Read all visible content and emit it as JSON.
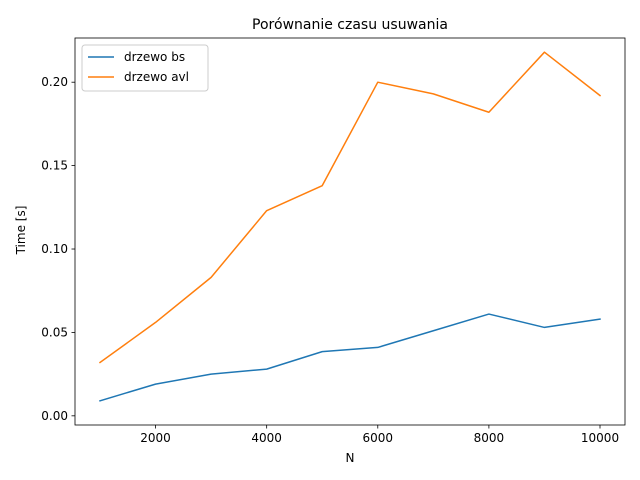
{
  "chart_data": {
    "type": "line",
    "title": "Porównanie czasu usuwania",
    "xlabel": "N",
    "ylabel": "Time [s]",
    "x": [
      1000,
      2000,
      3000,
      4000,
      5000,
      6000,
      7000,
      8000,
      9000,
      10000
    ],
    "xlim": [
      550,
      10450
    ],
    "ylim": [
      -0.0055,
      0.2265
    ],
    "xticks": [
      2000,
      4000,
      6000,
      8000,
      10000
    ],
    "xtick_labels": [
      "2000",
      "4000",
      "6000",
      "8000",
      "10000"
    ],
    "yticks": [
      0.0,
      0.05,
      0.1,
      0.15,
      0.2
    ],
    "ytick_labels": [
      "0.00",
      "0.05",
      "0.10",
      "0.15",
      "0.20"
    ],
    "grid": false,
    "legend_position": "top-left",
    "series": [
      {
        "name": "drzewo bs",
        "color": "#1f77b4",
        "values": [
          0.009,
          0.019,
          0.025,
          0.028,
          0.0385,
          0.041,
          0.051,
          0.061,
          0.053,
          0.058
        ]
      },
      {
        "name": "drzewo avl",
        "color": "#ff7f0e",
        "values": [
          0.032,
          0.056,
          0.083,
          0.123,
          0.138,
          0.2,
          0.193,
          0.182,
          0.218,
          0.192
        ]
      }
    ]
  }
}
